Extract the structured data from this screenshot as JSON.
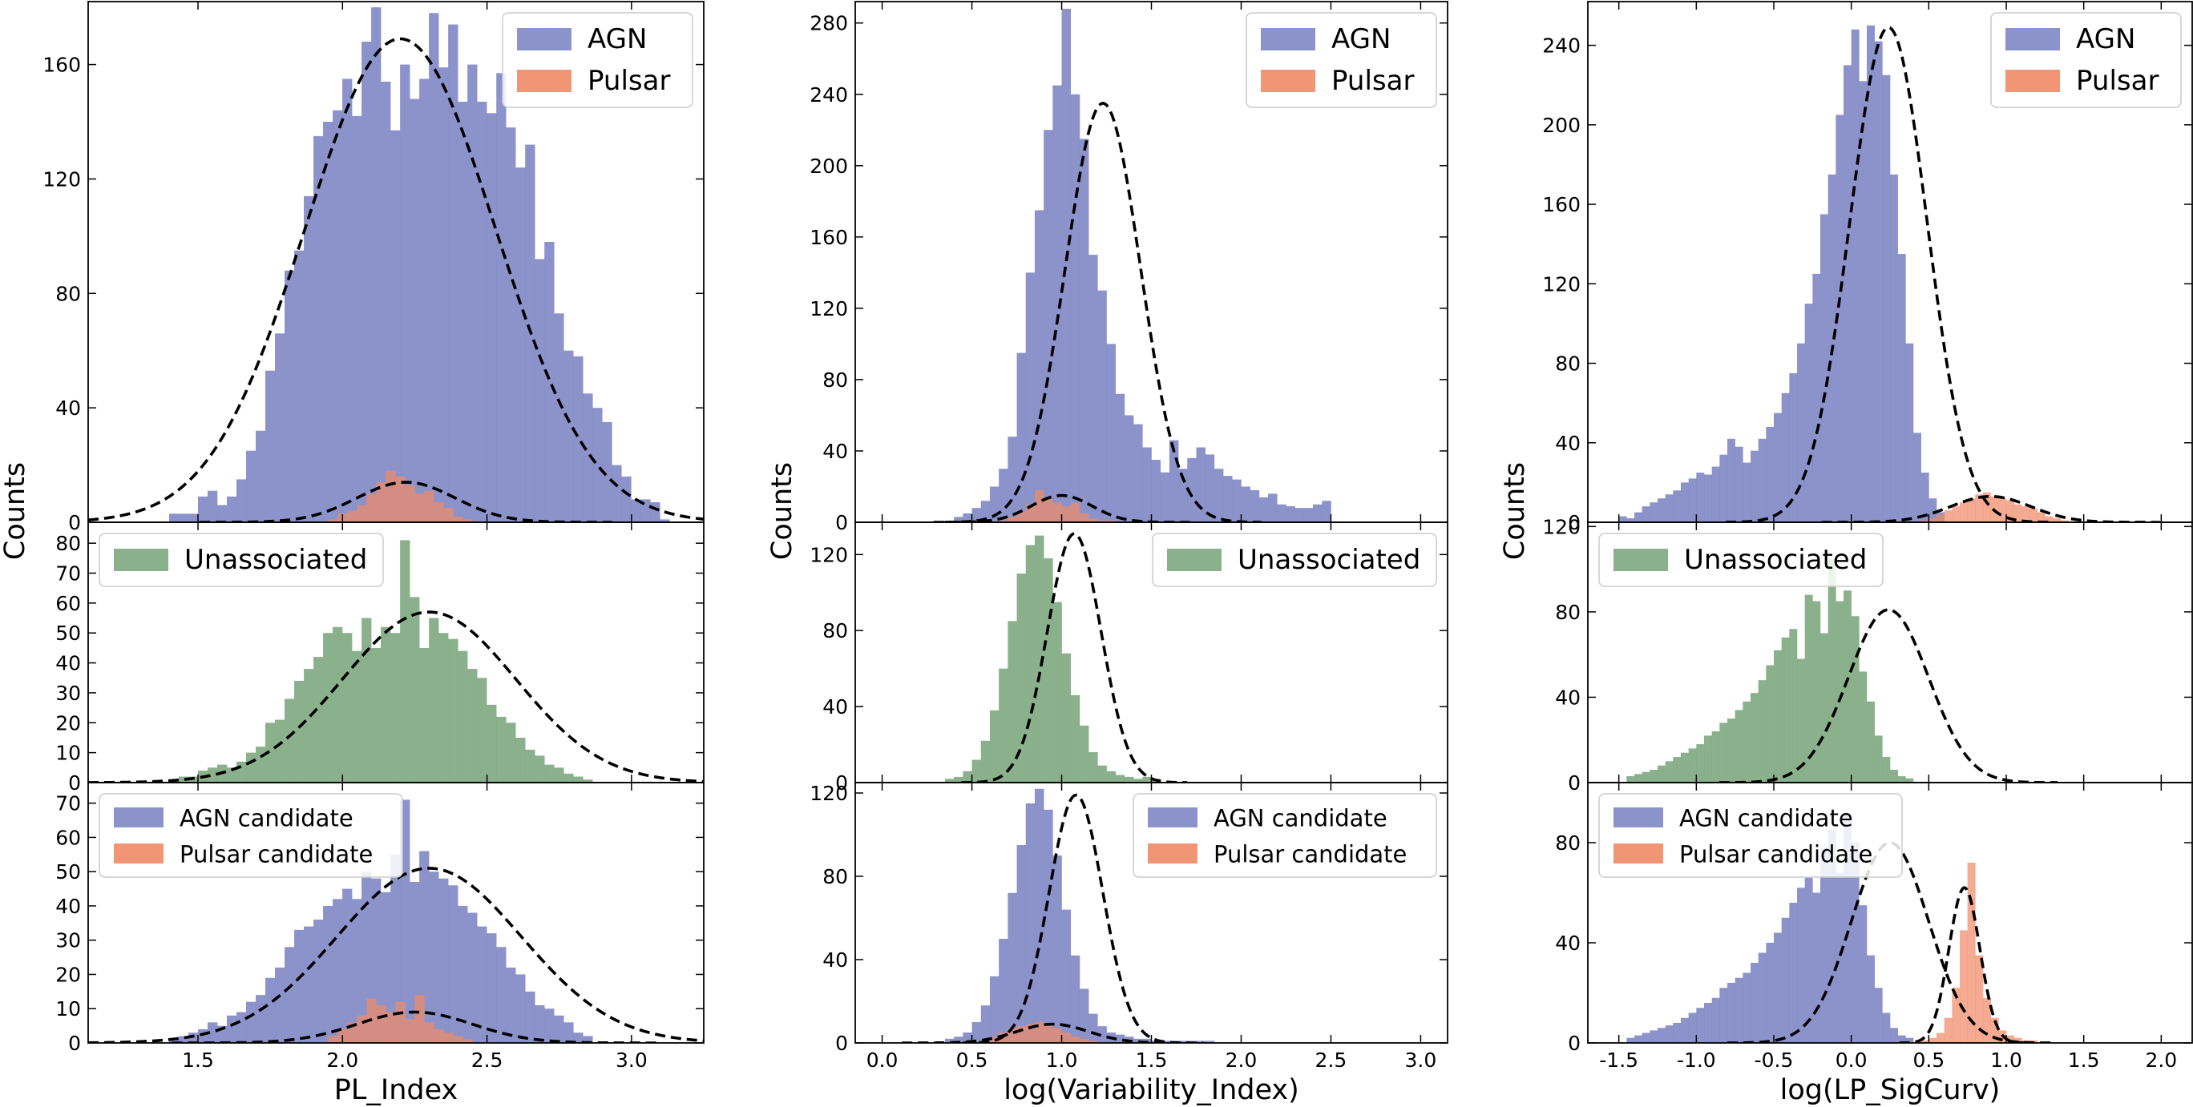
{
  "colors": {
    "agn": "#8087c4",
    "pulsar": "#f08a66",
    "unassociated": "#7da87e",
    "overlap": "#c0565a",
    "fit_line": "#000000"
  },
  "figure": {
    "columns": [
      {
        "xlabel": "PL_Index",
        "ylabel": "Counts"
      },
      {
        "xlabel": "log(Variability_Index)",
        "ylabel": "Counts"
      },
      {
        "xlabel": "log(LP_SigCurv)",
        "ylabel": "Counts"
      }
    ]
  },
  "chart_data": [
    {
      "type": "bar",
      "panel": "top-left",
      "xlim": [
        1.12,
        3.25
      ],
      "ylim": [
        0,
        182
      ],
      "xticks": [
        1.5,
        2.0,
        2.5,
        3.0
      ],
      "xtick_labels": [],
      "yticks": [
        0,
        40,
        80,
        120,
        160
      ],
      "ytick_labels": [
        "0",
        "40",
        "80",
        "120",
        "160"
      ],
      "legend": "top-right",
      "series": [
        {
          "name": "AGN",
          "color": "agn",
          "bin_start": 1.4,
          "bin_width": 0.0333,
          "values": [
            3,
            3,
            3,
            9,
            11,
            6,
            9,
            15,
            25,
            32,
            53,
            66,
            88,
            95,
            114,
            135,
            140,
            144,
            155,
            142,
            168,
            180,
            154,
            137,
            160,
            148,
            155,
            178,
            159,
            174,
            147,
            160,
            147,
            143,
            157,
            138,
            124,
            132,
            92,
            98,
            73,
            60,
            58,
            45,
            40,
            35,
            20,
            16,
            8,
            8,
            7,
            1
          ],
          "fit": {
            "amp": 169,
            "mu": 2.2,
            "sigma": 0.33
          }
        },
        {
          "name": "Pulsar",
          "color": "pulsar",
          "bin_start": 1.95,
          "bin_width": 0.0333,
          "values": [
            1,
            3,
            4,
            6,
            10,
            14,
            18,
            16,
            13,
            10,
            11,
            7,
            5,
            2,
            1
          ],
          "fit": {
            "amp": 14,
            "mu": 2.22,
            "sigma": 0.17
          }
        }
      ]
    },
    {
      "type": "bar",
      "panel": "middle-left",
      "xlim": [
        1.12,
        3.25
      ],
      "ylim": [
        0,
        87
      ],
      "xticks": [
        1.5,
        2.0,
        2.5,
        3.0
      ],
      "xtick_labels": [],
      "yticks": [
        0,
        10,
        20,
        30,
        40,
        50,
        60,
        70,
        80
      ],
      "ytick_labels": [
        "0",
        "10",
        "20",
        "30",
        "40",
        "50",
        "60",
        "70",
        "80"
      ],
      "legend": "top-left",
      "series": [
        {
          "name": "Unassociated",
          "color": "unassociated",
          "bin_start": 1.4,
          "bin_width": 0.0333,
          "values": [
            1,
            2,
            2,
            4,
            5,
            6,
            5,
            7,
            10,
            12,
            20,
            21,
            28,
            34,
            38,
            42,
            50,
            52,
            50,
            44,
            55,
            45,
            52,
            50,
            81,
            62,
            45,
            55,
            50,
            48,
            44,
            38,
            35,
            26,
            22,
            20,
            15,
            11,
            9,
            6,
            5,
            3,
            2,
            1
          ],
          "fit": {
            "amp": 57,
            "mu": 2.3,
            "sigma": 0.3
          }
        }
      ]
    },
    {
      "type": "bar",
      "panel": "bottom-left",
      "xlim": [
        1.12,
        3.25
      ],
      "ylim": [
        0,
        76
      ],
      "xticks": [
        1.5,
        2.0,
        2.5,
        3.0
      ],
      "xtick_labels": [
        "1.5",
        "2.0",
        "2.5",
        "3.0"
      ],
      "yticks": [
        0,
        10,
        20,
        30,
        40,
        50,
        60,
        70
      ],
      "ytick_labels": [
        "0",
        "10",
        "20",
        "30",
        "40",
        "50",
        "60",
        "70"
      ],
      "legend": "top-left",
      "series": [
        {
          "name": "AGN candidate",
          "color": "agn",
          "bin_start": 1.4,
          "bin_width": 0.0333,
          "values": [
            1,
            2,
            3,
            4,
            6,
            5,
            8,
            9,
            12,
            14,
            19,
            22,
            28,
            33,
            34,
            36,
            40,
            42,
            45,
            42,
            50,
            48,
            44,
            55,
            71,
            47,
            56,
            50,
            48,
            46,
            40,
            38,
            34,
            32,
            28,
            22,
            20,
            15,
            11,
            10,
            8,
            6,
            3,
            2
          ],
          "fit": {
            "amp": 51,
            "mu": 2.3,
            "sigma": 0.32
          }
        },
        {
          "name": "Pulsar candidate",
          "color": "pulsar",
          "bin_start": 1.95,
          "bin_width": 0.0333,
          "values": [
            2,
            4,
            6,
            8,
            13,
            11,
            9,
            12,
            7,
            14,
            6,
            4,
            3,
            2,
            1
          ],
          "fit": {
            "amp": 9,
            "mu": 2.25,
            "sigma": 0.2
          }
        }
      ]
    },
    {
      "type": "bar",
      "panel": "top-center",
      "xlim": [
        -0.15,
        3.15
      ],
      "ylim": [
        0,
        292
      ],
      "xticks": [
        0.0,
        0.5,
        1.0,
        1.5,
        2.0,
        2.5,
        3.0
      ],
      "xtick_labels": [],
      "yticks": [
        0,
        40,
        80,
        120,
        160,
        200,
        240,
        280
      ],
      "ytick_labels": [
        "0",
        "40",
        "80",
        "120",
        "160",
        "200",
        "240",
        "280"
      ],
      "legend": "top-right",
      "series": [
        {
          "name": "AGN",
          "color": "agn",
          "bin_start": 0.4,
          "bin_width": 0.05,
          "values": [
            3,
            5,
            8,
            12,
            20,
            30,
            48,
            95,
            140,
            175,
            220,
            245,
            288,
            240,
            215,
            150,
            130,
            100,
            72,
            60,
            55,
            42,
            35,
            28,
            46,
            30,
            36,
            42,
            38,
            30,
            26,
            24,
            20,
            18,
            14,
            16,
            10,
            9,
            8,
            8,
            10,
            12
          ],
          "fit": {
            "amp": 235,
            "mu": 1.23,
            "sigma": 0.21
          }
        },
        {
          "name": "Pulsar",
          "color": "pulsar",
          "bin_start": 0.65,
          "bin_width": 0.05,
          "values": [
            1,
            3,
            6,
            10,
            18,
            13,
            11,
            9,
            11,
            5,
            2,
            1,
            1
          ],
          "fit": {
            "amp": 15,
            "mu": 1.0,
            "sigma": 0.17
          }
        }
      ]
    },
    {
      "type": "bar",
      "panel": "middle-center",
      "xlim": [
        -0.15,
        3.15
      ],
      "ylim": [
        0,
        137
      ],
      "xticks": [
        0.0,
        0.5,
        1.0,
        1.5,
        2.0,
        2.5,
        3.0
      ],
      "xtick_labels": [],
      "yticks": [
        0,
        40,
        80,
        120
      ],
      "ytick_labels": [
        "0",
        "40",
        "80",
        "120"
      ],
      "legend": "top-right",
      "series": [
        {
          "name": "Unassociated",
          "color": "unassociated",
          "bin_start": 0.35,
          "bin_width": 0.05,
          "values": [
            2,
            3,
            6,
            12,
            22,
            38,
            60,
            85,
            110,
            125,
            130,
            118,
            95,
            68,
            46,
            30,
            16,
            9,
            6,
            4,
            3,
            2,
            3,
            2
          ],
          "fit": {
            "amp": 131,
            "mu": 1.07,
            "sigma": 0.15
          }
        }
      ]
    },
    {
      "type": "bar",
      "panel": "bottom-center",
      "xlim": [
        -0.15,
        3.15
      ],
      "ylim": [
        0,
        125
      ],
      "xticks": [
        0.0,
        0.5,
        1.0,
        1.5,
        2.0,
        2.5,
        3.0
      ],
      "xtick_labels": [
        "0.0",
        "0.5",
        "1.0",
        "1.5",
        "2.0",
        "2.5",
        "3.0"
      ],
      "yticks": [
        0,
        40,
        80,
        120
      ],
      "ytick_labels": [
        "0",
        "40",
        "80",
        "120"
      ],
      "legend": "top-right",
      "series": [
        {
          "name": "AGN candidate",
          "color": "agn",
          "bin_start": 0.35,
          "bin_width": 0.05,
          "values": [
            2,
            3,
            5,
            10,
            18,
            32,
            50,
            72,
            95,
            115,
            122,
            112,
            90,
            64,
            42,
            26,
            14,
            8,
            5,
            4,
            3,
            2,
            2,
            1,
            1,
            1,
            1,
            1,
            1,
            1
          ],
          "fit": {
            "amp": 119,
            "mu": 1.08,
            "sigma": 0.15
          }
        },
        {
          "name": "Pulsar candidate",
          "color": "pulsar",
          "bin_start": 0.55,
          "bin_width": 0.05,
          "values": [
            1,
            3,
            5,
            7,
            8,
            9,
            10,
            9,
            7,
            5,
            3,
            2,
            1
          ],
          "fit": {
            "amp": 9,
            "mu": 0.95,
            "sigma": 0.2
          }
        }
      ]
    },
    {
      "type": "bar",
      "panel": "top-right",
      "xlim": [
        -1.7,
        2.2
      ],
      "ylim": [
        0,
        262
      ],
      "xticks": [
        -1.5,
        -1.0,
        -0.5,
        0.0,
        0.5,
        1.0,
        1.5,
        2.0
      ],
      "xtick_labels": [],
      "yticks": [
        0,
        40,
        80,
        120,
        160,
        200,
        240
      ],
      "ytick_labels": [
        "0",
        "40",
        "80",
        "120",
        "160",
        "200",
        "240"
      ],
      "legend": "top-right",
      "series": [
        {
          "name": "AGN",
          "color": "agn",
          "bin_start": -1.5,
          "bin_width": 0.05,
          "values": [
            3,
            2,
            5,
            8,
            10,
            12,
            14,
            16,
            20,
            22,
            25,
            24,
            28,
            34,
            42,
            38,
            30,
            36,
            42,
            48,
            55,
            65,
            75,
            90,
            110,
            125,
            155,
            175,
            205,
            230,
            248,
            222,
            250,
            242,
            225,
            175,
            135,
            90,
            45,
            25,
            12,
            5
          ],
          "fit": {
            "amp": 249,
            "mu": 0.24,
            "sigma": 0.25
          }
        },
        {
          "name": "Pulsar",
          "color": "pulsar",
          "bin_start": 0.45,
          "bin_width": 0.05,
          "values": [
            1,
            2,
            4,
            6,
            8,
            10,
            12,
            14,
            15,
            13,
            12,
            11,
            9,
            8,
            7,
            5,
            3,
            2,
            1
          ],
          "fit": {
            "amp": 13,
            "mu": 0.9,
            "sigma": 0.26
          }
        }
      ]
    },
    {
      "type": "bar",
      "panel": "middle-right",
      "xlim": [
        -1.7,
        2.2
      ],
      "ylim": [
        0,
        122
      ],
      "xticks": [
        -1.5,
        -1.0,
        -0.5,
        0.0,
        0.5,
        1.0,
        1.5,
        2.0
      ],
      "xtick_labels": [],
      "yticks": [
        0,
        40,
        80,
        120
      ],
      "ytick_labels": [
        "0",
        "40",
        "80",
        "120"
      ],
      "legend": "top-left",
      "series": [
        {
          "name": "Unassociated",
          "color": "unassociated",
          "bin_start": -1.45,
          "bin_width": 0.05,
          "values": [
            3,
            4,
            5,
            6,
            8,
            10,
            12,
            14,
            16,
            18,
            22,
            24,
            28,
            30,
            34,
            38,
            42,
            48,
            55,
            62,
            68,
            72,
            58,
            88,
            85,
            70,
            105,
            85,
            90,
            78,
            52,
            38,
            22,
            12,
            6,
            3,
            2
          ],
          "fit": {
            "amp": 81,
            "mu": 0.24,
            "sigma": 0.26
          }
        }
      ]
    },
    {
      "type": "bar",
      "panel": "bottom-right",
      "xlim": [
        -1.7,
        2.2
      ],
      "ylim": [
        0,
        104
      ],
      "xticks": [
        -1.5,
        -1.0,
        -0.5,
        0.0,
        0.5,
        1.0,
        1.5,
        2.0
      ],
      "xtick_labels": [
        "-1.5",
        "-1.0",
        "-0.5",
        "0.0",
        "0.5",
        "1.0",
        "1.5",
        "2.0"
      ],
      "yticks": [
        0,
        40,
        80
      ],
      "ytick_labels": [
        "0",
        "40",
        "80"
      ],
      "legend": "top-left",
      "series": [
        {
          "name": "AGN candidate",
          "color": "agn",
          "bin_start": -1.45,
          "bin_width": 0.05,
          "values": [
            2,
            3,
            4,
            5,
            6,
            7,
            8,
            10,
            12,
            14,
            16,
            18,
            22,
            24,
            26,
            28,
            32,
            36,
            40,
            44,
            50,
            56,
            62,
            66,
            60,
            78,
            85,
            68,
            92,
            80,
            55,
            35,
            22,
            12,
            6,
            3,
            2
          ],
          "fit": {
            "amp": 80,
            "mu": 0.25,
            "sigma": 0.25
          }
        },
        {
          "name": "Pulsar candidate",
          "color": "pulsar",
          "bin_start": 0.45,
          "bin_width": 0.05,
          "values": [
            1,
            2,
            4,
            10,
            22,
            45,
            72,
            35,
            18,
            10,
            5,
            3,
            2,
            1,
            1
          ],
          "fit": {
            "amp": 62,
            "mu": 0.73,
            "sigma": 0.1
          }
        }
      ]
    }
  ]
}
